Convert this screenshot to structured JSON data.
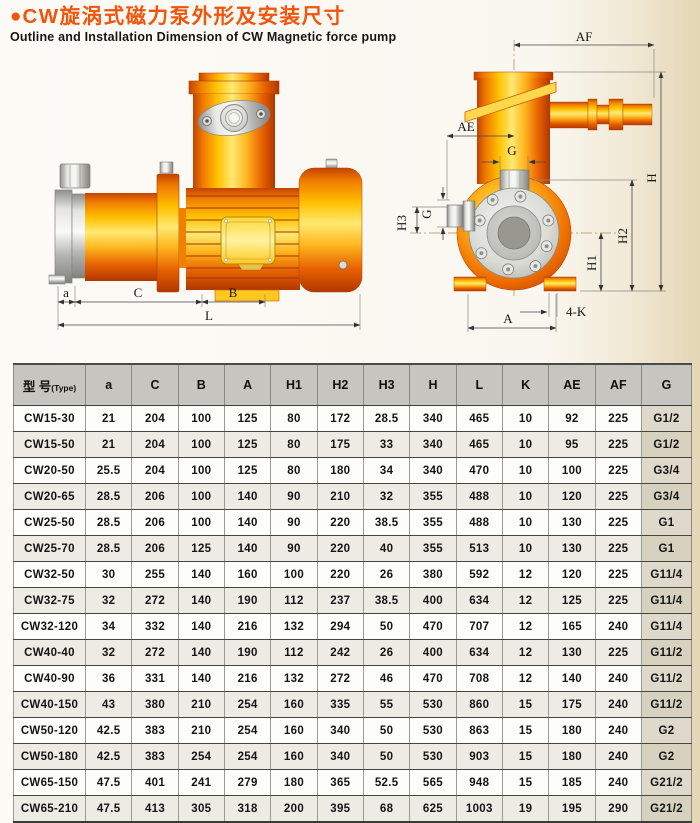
{
  "page": {
    "bullet": "●",
    "title_zh": "CW旋涡式磁力泵外形及安装尺寸",
    "title_en": "Outline and Installation Dimension of CW Magnetic force pump",
    "accent_color": "#f4530a"
  },
  "drawings": {
    "side_view": {
      "dim_a": "a",
      "dim_c": "C",
      "dim_b": "B",
      "dim_l": "L"
    },
    "front_view": {
      "dim_af": "AF",
      "dim_ae": "AE",
      "dim_g_top": "G",
      "dim_g_side": "G",
      "dim_h3": "H3",
      "dim_h": "H",
      "dim_h2": "H2",
      "dim_h1": "H1",
      "dim_a": "A",
      "dim_4k": "4-K"
    }
  },
  "table": {
    "columns": [
      "型 号(Type)",
      "a",
      "C",
      "B",
      "A",
      "H1",
      "H2",
      "H3",
      "H",
      "L",
      "K",
      "AE",
      "AF",
      "G"
    ],
    "rows": [
      [
        "CW15-30",
        "21",
        "204",
        "100",
        "125",
        "80",
        "172",
        "28.5",
        "340",
        "465",
        "10",
        "92",
        "225",
        "G1/2"
      ],
      [
        "CW15-50",
        "21",
        "204",
        "100",
        "125",
        "80",
        "175",
        "33",
        "340",
        "465",
        "10",
        "95",
        "225",
        "G1/2"
      ],
      [
        "CW20-50",
        "25.5",
        "204",
        "100",
        "125",
        "80",
        "180",
        "34",
        "340",
        "470",
        "10",
        "100",
        "225",
        "G3/4"
      ],
      [
        "CW20-65",
        "28.5",
        "206",
        "100",
        "140",
        "90",
        "210",
        "32",
        "355",
        "488",
        "10",
        "120",
        "225",
        "G3/4"
      ],
      [
        "CW25-50",
        "28.5",
        "206",
        "100",
        "140",
        "90",
        "220",
        "38.5",
        "355",
        "488",
        "10",
        "130",
        "225",
        "G1"
      ],
      [
        "CW25-70",
        "28.5",
        "206",
        "125",
        "140",
        "90",
        "220",
        "40",
        "355",
        "513",
        "10",
        "130",
        "225",
        "G1"
      ],
      [
        "CW32-50",
        "30",
        "255",
        "140",
        "160",
        "100",
        "220",
        "26",
        "380",
        "592",
        "12",
        "120",
        "225",
        "G11/4"
      ],
      [
        "CW32-75",
        "32",
        "272",
        "140",
        "190",
        "112",
        "237",
        "38.5",
        "400",
        "634",
        "12",
        "125",
        "225",
        "G11/4"
      ],
      [
        "CW32-120",
        "34",
        "332",
        "140",
        "216",
        "132",
        "294",
        "50",
        "470",
        "707",
        "12",
        "165",
        "240",
        "G11/4"
      ],
      [
        "CW40-40",
        "32",
        "272",
        "140",
        "190",
        "112",
        "242",
        "26",
        "400",
        "634",
        "12",
        "130",
        "225",
        "G11/2"
      ],
      [
        "CW40-90",
        "36",
        "331",
        "140",
        "216",
        "132",
        "272",
        "46",
        "470",
        "708",
        "12",
        "140",
        "240",
        "G11/2"
      ],
      [
        "CW40-150",
        "43",
        "380",
        "210",
        "254",
        "160",
        "335",
        "55",
        "530",
        "860",
        "15",
        "175",
        "240",
        "G11/2"
      ],
      [
        "CW50-120",
        "42.5",
        "383",
        "210",
        "254",
        "160",
        "340",
        "50",
        "530",
        "863",
        "15",
        "180",
        "240",
        "G2"
      ],
      [
        "CW50-180",
        "42.5",
        "383",
        "254",
        "254",
        "160",
        "340",
        "50",
        "530",
        "903",
        "15",
        "180",
        "240",
        "G2"
      ],
      [
        "CW65-150",
        "47.5",
        "401",
        "241",
        "279",
        "180",
        "365",
        "52.5",
        "565",
        "948",
        "15",
        "185",
        "240",
        "G21/2"
      ],
      [
        "CW65-210",
        "47.5",
        "413",
        "305",
        "318",
        "200",
        "395",
        "68",
        "625",
        "1003",
        "19",
        "195",
        "290",
        "G21/2"
      ]
    ]
  }
}
